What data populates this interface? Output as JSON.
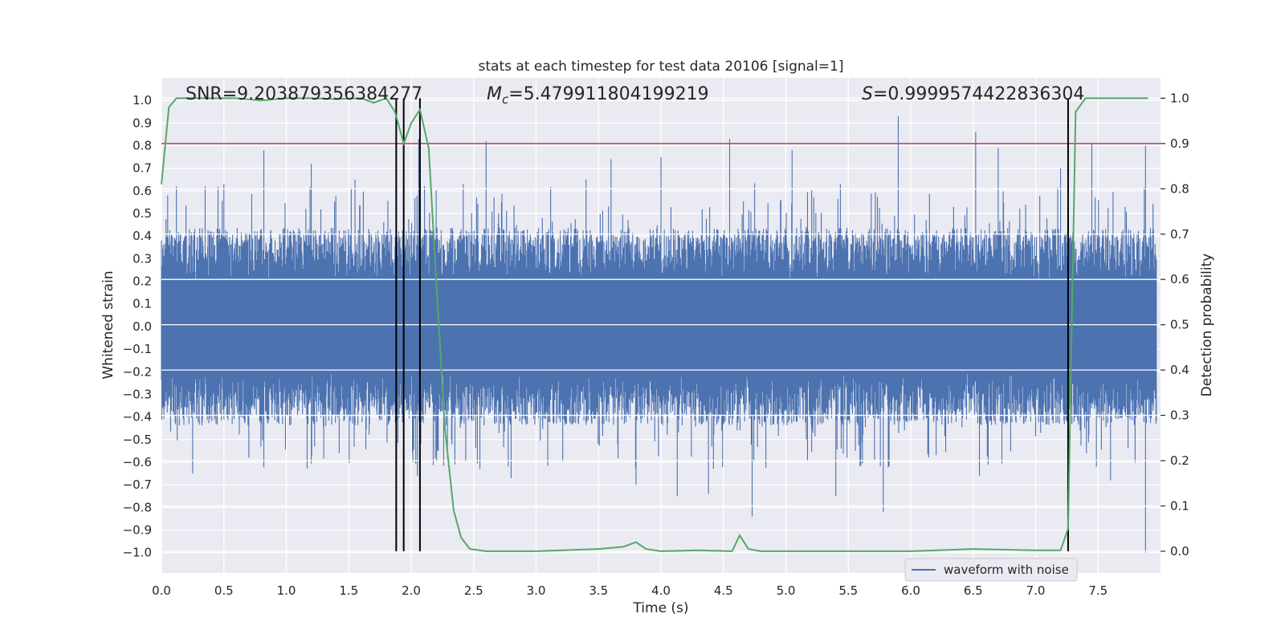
{
  "chart_data": {
    "type": "line",
    "title": "stats at each timestep for test data 20106 [signal=1]",
    "xlabel": "Time (s)",
    "ylabel_left": "Whitened strain",
    "ylabel_right": "Detection probability",
    "xlim": [
      0.0,
      8.0
    ],
    "ylim_left": [
      -1.09,
      1.1
    ],
    "ylim_right": [
      -0.048,
      1.045
    ],
    "x_ticks": [
      "0.0",
      "0.5",
      "1.0",
      "1.5",
      "2.0",
      "2.5",
      "3.0",
      "3.5",
      "4.0",
      "4.5",
      "5.0",
      "5.5",
      "6.0",
      "6.5",
      "7.0",
      "7.5"
    ],
    "y_left_ticks": [
      "1.0",
      "0.9",
      "0.8",
      "0.7",
      "0.6",
      "0.5",
      "0.4",
      "0.3",
      "0.2",
      "0.1",
      "0.0",
      "−0.1",
      "−0.2",
      "−0.3",
      "−0.4",
      "−0.5",
      "−0.6",
      "−0.7",
      "−0.8",
      "−0.9",
      "−1.0"
    ],
    "y_right_ticks": [
      "1.0",
      "0.9",
      "0.8",
      "0.7",
      "0.6",
      "0.5",
      "0.4",
      "0.3",
      "0.2",
      "0.1",
      "0.0"
    ],
    "annotations": {
      "snr": "SNR=9.203879356384277",
      "mc_symbol": "M",
      "mc_sub": "c",
      "mc_value": "=5.479911804199219",
      "s_symbol": "S",
      "s_value": "=0.9999574422836304"
    },
    "threshold": {
      "value_right": 0.9,
      "color": "#c44e52"
    },
    "vertical_lines": [
      1.88,
      1.94,
      2.07,
      7.26
    ],
    "waveform": {
      "name": "waveform with noise",
      "color": "#4c72b0",
      "typical_envelope": 0.38,
      "peaks": [
        {
          "t": 0.05,
          "y": 0.58
        },
        {
          "t": 0.12,
          "y": 0.62
        },
        {
          "t": 0.35,
          "y": 0.62
        },
        {
          "t": 0.5,
          "y": 0.63
        },
        {
          "t": 0.82,
          "y": 0.78
        },
        {
          "t": 1.2,
          "y": 0.72
        },
        {
          "t": 1.55,
          "y": 0.65
        },
        {
          "t": 1.94,
          "y": 0.86
        },
        {
          "t": 2.06,
          "y": 0.83
        },
        {
          "t": 2.6,
          "y": 0.82
        },
        {
          "t": 3.4,
          "y": 0.65
        },
        {
          "t": 3.6,
          "y": 0.74
        },
        {
          "t": 4.0,
          "y": 0.75
        },
        {
          "t": 4.55,
          "y": 0.83
        },
        {
          "t": 5.05,
          "y": 0.78
        },
        {
          "t": 5.9,
          "y": 0.93
        },
        {
          "t": 6.52,
          "y": 0.86
        },
        {
          "t": 6.7,
          "y": 0.79
        },
        {
          "t": 7.2,
          "y": 0.7
        },
        {
          "t": 7.45,
          "y": 0.81
        },
        {
          "t": 7.88,
          "y": 0.8
        }
      ],
      "troughs": [
        {
          "t": 0.25,
          "y": -0.65
        },
        {
          "t": 2.05,
          "y": -0.66
        },
        {
          "t": 2.8,
          "y": -0.67
        },
        {
          "t": 3.8,
          "y": -0.7
        },
        {
          "t": 4.13,
          "y": -0.75
        },
        {
          "t": 4.38,
          "y": -0.74
        },
        {
          "t": 4.73,
          "y": -0.84
        },
        {
          "t": 5.4,
          "y": -0.75
        },
        {
          "t": 5.78,
          "y": -0.82
        },
        {
          "t": 6.55,
          "y": -0.66
        },
        {
          "t": 7.6,
          "y": -0.68
        },
        {
          "t": 7.88,
          "y": -1.0
        }
      ]
    },
    "probability": {
      "name": "detection probability",
      "color": "#55a868",
      "x": [
        0.0,
        0.06,
        0.12,
        0.2,
        0.4,
        0.6,
        0.8,
        1.0,
        1.2,
        1.4,
        1.6,
        1.7,
        1.8,
        1.87,
        1.94,
        2.0,
        2.07,
        2.14,
        2.2,
        2.27,
        2.34,
        2.4,
        2.47,
        2.6,
        3.0,
        3.5,
        3.7,
        3.8,
        3.88,
        4.0,
        4.3,
        4.57,
        4.63,
        4.7,
        4.8,
        5.0,
        6.0,
        6.5,
        7.0,
        7.2,
        7.26,
        7.32,
        7.4,
        7.6,
        7.9
      ],
      "y": [
        0.81,
        0.98,
        1.0,
        1.0,
        1.0,
        1.0,
        0.995,
        1.0,
        1.0,
        0.998,
        1.0,
        0.99,
        1.0,
        0.97,
        0.9,
        0.945,
        0.975,
        0.89,
        0.6,
        0.27,
        0.09,
        0.03,
        0.005,
        0.0,
        0.0,
        0.005,
        0.01,
        0.02,
        0.005,
        0.0,
        0.002,
        0.0,
        0.035,
        0.005,
        0.0,
        0.0,
        0.0,
        0.005,
        0.002,
        0.002,
        0.05,
        0.97,
        1.0,
        1.0,
        1.0
      ]
    },
    "legend": {
      "label": "waveform with noise",
      "placement": "lower-right"
    }
  }
}
